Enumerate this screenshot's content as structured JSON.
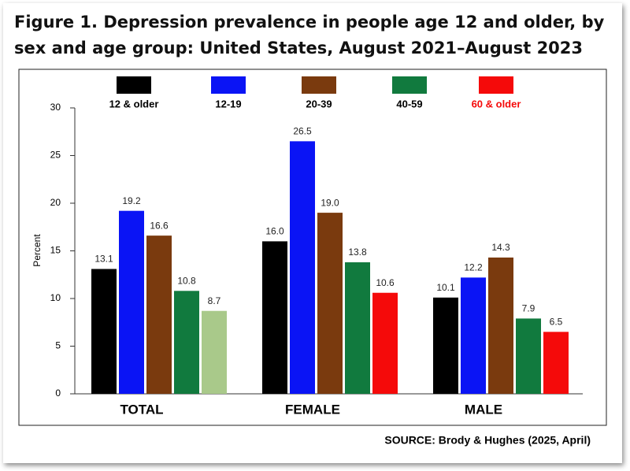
{
  "chart_data": {
    "type": "bar",
    "title": "Figure 1. Depression prevalence in people age 12 and older, by sex and age group: United States, August 2021–August 2023",
    "y_label": "Percent",
    "source": "SOURCE: Brody & Hughes (2025, April)",
    "categories": [
      "TOTAL",
      "FEMALE",
      "MALE"
    ],
    "series": [
      {
        "name": "12 & older",
        "color": "#000000",
        "label_color": "#000000",
        "values": [
          13.1,
          16.0,
          10.1
        ],
        "value_labels": [
          "13.1",
          "16.0",
          "10.1"
        ]
      },
      {
        "name": "12-19",
        "color": "#0a14f5",
        "label_color": "#000000",
        "values": [
          19.2,
          26.5,
          12.2
        ],
        "value_labels": [
          "19.2",
          "26.5",
          "12.2"
        ]
      },
      {
        "name": "20-39",
        "color": "#7a3a0e",
        "label_color": "#000000",
        "values": [
          16.6,
          19.0,
          14.3
        ],
        "value_labels": [
          "16.6",
          "19.0",
          "14.3"
        ]
      },
      {
        "name": "40-59",
        "color": "#117a3e",
        "label_color": "#000000",
        "values": [
          10.8,
          13.8,
          7.9
        ],
        "value_labels": [
          "10.8",
          "13.8",
          "7.9"
        ]
      },
      {
        "name": "60 & older",
        "color": "#f50a0a",
        "label_color": "#f50a0a",
        "point_colors": [
          "#a9c98a",
          "#f50a0a",
          "#f50a0a"
        ],
        "values": [
          8.7,
          10.6,
          6.5
        ],
        "value_labels": [
          "8.7",
          "10.6",
          "6.5"
        ]
      }
    ],
    "ylim": [
      0,
      30
    ],
    "yticks": [
      0,
      5,
      10,
      15,
      20,
      25,
      30
    ],
    "grid": false
  }
}
